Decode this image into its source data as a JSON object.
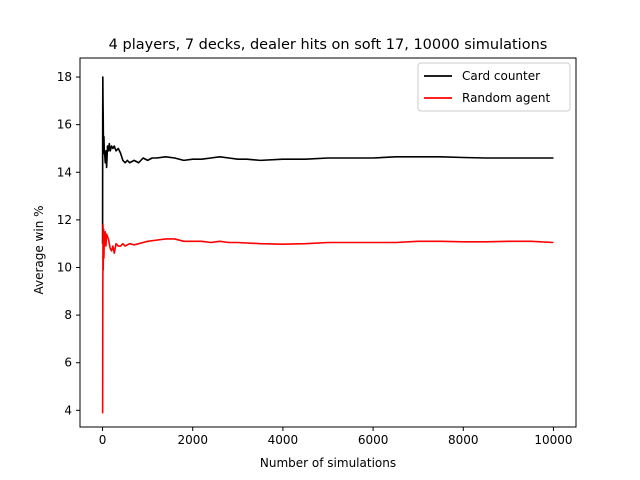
{
  "chart_data": {
    "type": "line",
    "title": "4 players, 7 decks, dealer hits on soft 17, 10000 simulations",
    "xlabel": "Number of simulations",
    "ylabel": "Average win %",
    "xlim": [
      -500,
      10500
    ],
    "ylim": [
      3.3,
      18.8
    ],
    "xticks": [
      0,
      2000,
      4000,
      6000,
      8000,
      10000
    ],
    "xtick_labels": [
      "0",
      "2000",
      "4000",
      "6000",
      "8000",
      "10000"
    ],
    "yticks": [
      4,
      6,
      8,
      10,
      12,
      14,
      16,
      18
    ],
    "ytick_labels": [
      "4",
      "6",
      "8",
      "10",
      "12",
      "14",
      "16",
      "18"
    ],
    "grid": false,
    "legend_position": "top-right",
    "series": [
      {
        "name": "Card counter",
        "color": "#000000",
        "x": [
          1,
          3,
          6,
          10,
          15,
          20,
          25,
          30,
          40,
          50,
          60,
          75,
          90,
          110,
          130,
          150,
          170,
          200,
          230,
          260,
          300,
          350,
          400,
          450,
          500,
          550,
          600,
          700,
          800,
          900,
          1000,
          1100,
          1200,
          1400,
          1600,
          1800,
          2000,
          2200,
          2400,
          2600,
          2800,
          3000,
          3200,
          3500,
          4000,
          4500,
          5000,
          5500,
          6000,
          6500,
          7000,
          7500,
          8000,
          8500,
          9000,
          9500,
          10000
        ],
        "y": [
          11.0,
          16.0,
          18.0,
          17.0,
          16.3,
          15.0,
          14.8,
          15.5,
          14.8,
          14.7,
          14.4,
          14.9,
          14.2,
          15.1,
          14.9,
          15.2,
          14.9,
          15.1,
          15.0,
          15.1,
          14.9,
          15.0,
          14.8,
          14.5,
          14.4,
          14.5,
          14.4,
          14.5,
          14.4,
          14.6,
          14.5,
          14.6,
          14.6,
          14.65,
          14.6,
          14.5,
          14.55,
          14.55,
          14.6,
          14.65,
          14.6,
          14.55,
          14.55,
          14.5,
          14.55,
          14.55,
          14.6,
          14.6,
          14.6,
          14.65,
          14.65,
          14.65,
          14.62,
          14.6,
          14.6,
          14.6,
          14.6
        ]
      },
      {
        "name": "Random agent",
        "color": "#ff0000",
        "x": [
          1,
          2,
          4,
          6,
          8,
          10,
          12,
          15,
          20,
          25,
          30,
          40,
          50,
          60,
          75,
          90,
          110,
          130,
          150,
          170,
          200,
          230,
          260,
          300,
          350,
          400,
          450,
          500,
          600,
          700,
          800,
          900,
          1000,
          1200,
          1400,
          1600,
          1800,
          2000,
          2200,
          2400,
          2600,
          2800,
          3000,
          3500,
          4000,
          4500,
          5000,
          5500,
          6000,
          6500,
          7000,
          7500,
          8000,
          8500,
          9000,
          9500,
          10000
        ],
        "y": [
          4.0,
          3.9,
          6.0,
          9.0,
          10.0,
          11.8,
          11.5,
          9.9,
          11.0,
          11.6,
          10.4,
          11.3,
          11.0,
          11.5,
          10.9,
          11.4,
          11.3,
          11.2,
          11.0,
          10.8,
          10.7,
          10.9,
          10.6,
          11.0,
          10.9,
          10.9,
          11.0,
          10.9,
          11.0,
          10.95,
          11.0,
          11.05,
          11.1,
          11.15,
          11.2,
          11.2,
          11.1,
          11.1,
          11.1,
          11.05,
          11.1,
          11.05,
          11.05,
          11.0,
          10.98,
          11.0,
          11.05,
          11.05,
          11.05,
          11.05,
          11.1,
          11.1,
          11.08,
          11.08,
          11.1,
          11.1,
          11.05
        ]
      }
    ]
  }
}
